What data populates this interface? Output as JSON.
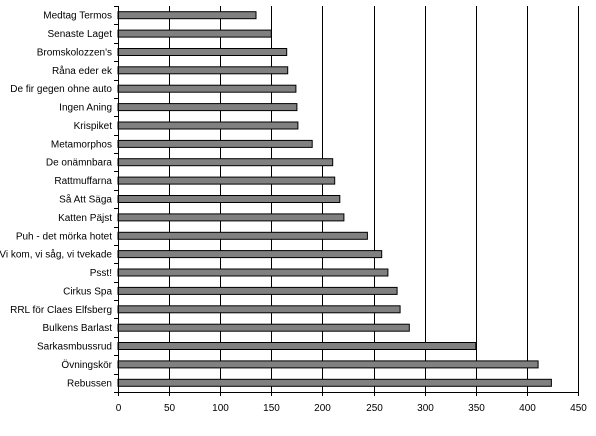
{
  "chart_data": {
    "type": "bar",
    "orientation": "horizontal",
    "title": "",
    "xlabel": "",
    "ylabel": "",
    "xlim": [
      0,
      450
    ],
    "xticks": [
      0,
      50,
      100,
      150,
      200,
      250,
      300,
      350,
      400,
      450
    ],
    "grid": "vertical-major",
    "legend": "none",
    "bar_color": "#808080",
    "bar_edge_color": "#000000",
    "categories": [
      "Medtag Termos",
      "Senaste Laget",
      "Bromskolozzen's",
      "Råna eder ek",
      "De fir gegen ohne auto",
      "Ingen Aning",
      "Krispiket",
      "Metamorphos",
      "De onämnbara",
      "Rattmuffarna",
      "Så Att Säga",
      "Katten Päjst",
      "Puh - det mörka hotet",
      "Vi kom, vi såg, vi tvekade",
      "Psst!",
      "Cirkus Spa",
      "RRL för Claes Elfsberg",
      "Bulkens Barlast",
      "Sarkasmbussrud",
      "Övningskör",
      "Rebussen"
    ],
    "values": [
      135,
      150,
      165,
      166,
      174,
      175,
      176,
      190,
      210,
      212,
      217,
      221,
      244,
      258,
      264,
      273,
      276,
      285,
      350,
      411,
      424
    ]
  }
}
